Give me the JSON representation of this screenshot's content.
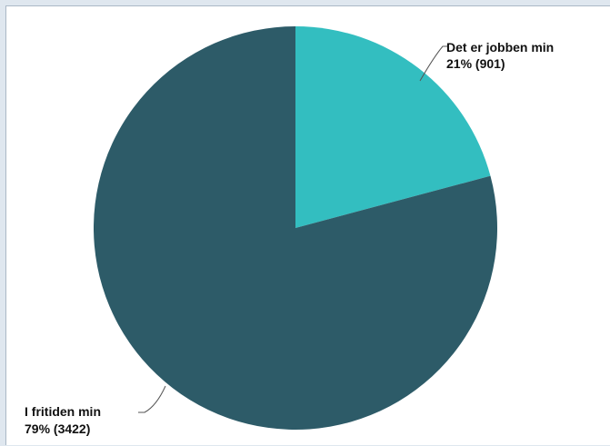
{
  "chart_data": {
    "type": "pie",
    "title": "",
    "slices": [
      {
        "label": "Det er jobben min",
        "percent_label": "21% (901)",
        "value": 901,
        "color": "#33bec0"
      },
      {
        "label": "I fritiden min",
        "percent_label": "79% (3422)",
        "value": 3422,
        "color": "#2d5b68"
      }
    ],
    "legend": "none"
  }
}
